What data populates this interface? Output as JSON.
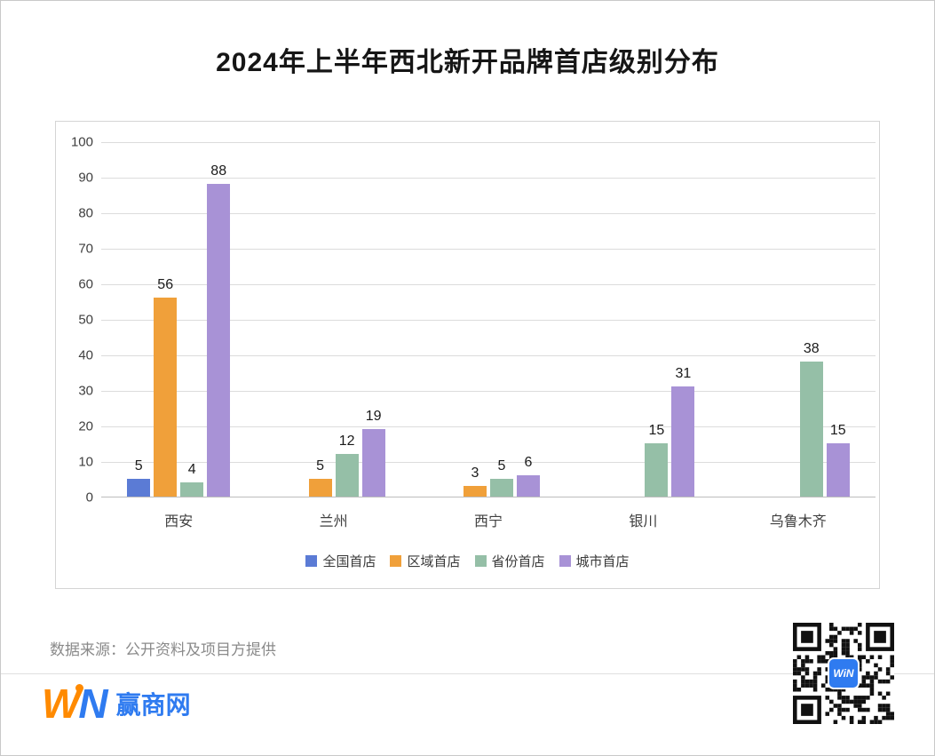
{
  "title": "2024年上半年西北新开品牌首店级别分布",
  "chart_data": {
    "type": "bar",
    "title": "2024年上半年西北新开品牌首店级别分布",
    "categories": [
      "西安",
      "兰州",
      "西宁",
      "银川",
      "乌鲁木齐"
    ],
    "series": [
      {
        "name": "全国首店",
        "color": "#5b7bd5",
        "values": [
          5,
          0,
          0,
          0,
          0
        ]
      },
      {
        "name": "区域首店",
        "color": "#f0a03a",
        "values": [
          56,
          5,
          3,
          0,
          0
        ]
      },
      {
        "name": "省份首店",
        "color": "#95bfa7",
        "values": [
          4,
          12,
          5,
          15,
          38
        ]
      },
      {
        "name": "城市首店",
        "color": "#a892d6",
        "values": [
          88,
          19,
          6,
          31,
          15
        ]
      }
    ],
    "xlabel": "",
    "ylabel": "",
    "ylim": [
      0,
      100
    ],
    "ytick_step": 10,
    "grid": true,
    "legend_position": "bottom",
    "data_labels": true
  },
  "footer": {
    "source": "数据来源：公开资料及项目方提供"
  },
  "logo": {
    "mark_w": "W",
    "mark_n": "N",
    "brand": "赢商网",
    "colors": {
      "orange": "#ff8a00",
      "blue": "#2f7bf0"
    }
  },
  "qr": {
    "center_label": "WiN"
  }
}
